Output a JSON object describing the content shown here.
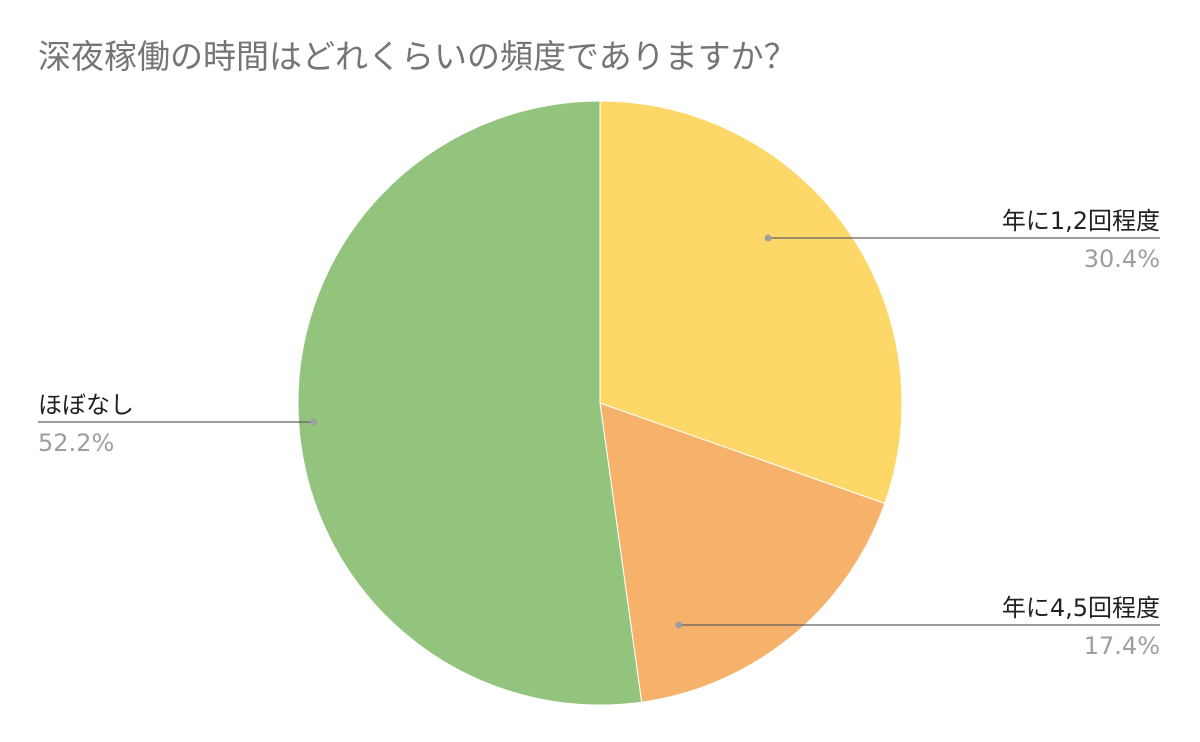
{
  "chart_data": {
    "type": "pie",
    "title": "深夜稼働の時間はどれくらいの頻度でありますか？",
    "slices": [
      {
        "label": "年に1,2回程度",
        "value": 30.4,
        "value_label": "30.4%",
        "color": "#fdd868"
      },
      {
        "label": "年に4,5回程度",
        "value": 17.4,
        "value_label": "17.4%",
        "color": "#f6b26b"
      },
      {
        "label": "ほぼなし",
        "value": 52.2,
        "value_label": "52.2%",
        "color": "#93c47d"
      }
    ],
    "start_angle": "12 o'clock",
    "direction": "clockwise",
    "labels": "outside with leader lines"
  }
}
